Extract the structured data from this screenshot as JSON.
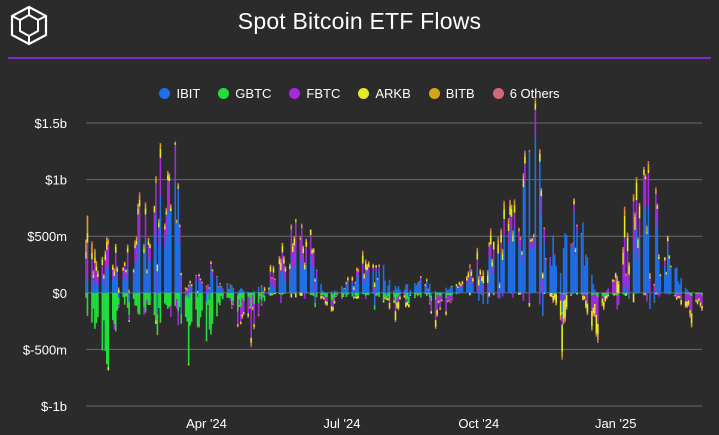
{
  "header": {
    "title": "Spot Bitcoin ETF Flows",
    "logo_icon": "cube-logo-icon"
  },
  "colors": {
    "background": "#2b2b2b",
    "accent_rule": "#7b2fbf",
    "grid": "#6a6a6a"
  },
  "chart_data": {
    "type": "bar",
    "stacked": true,
    "title": "Spot Bitcoin ETF Flows",
    "xlabel": "",
    "ylabel": "",
    "ylim": [
      -1000000000,
      1500000000
    ],
    "yticks": [
      {
        "value": 1500000000,
        "label": "$1.5b"
      },
      {
        "value": 1000000000,
        "label": "$1b"
      },
      {
        "value": 500000000,
        "label": "$500m"
      },
      {
        "value": 0,
        "label": "$0"
      },
      {
        "value": -500000000,
        "label": "$-500m"
      },
      {
        "value": -1000000000,
        "label": "$-1b"
      }
    ],
    "xticks": [
      {
        "date": "2024-04-01",
        "label": "Apr '24"
      },
      {
        "date": "2024-07-01",
        "label": "Jul '24"
      },
      {
        "date": "2024-10-01",
        "label": "Oct '24"
      },
      {
        "date": "2025-01-01",
        "label": "Jan '25"
      }
    ],
    "xlim": [
      "2024-01-11",
      "2025-02-28"
    ],
    "grid": true,
    "legend_position": "top",
    "series": [
      {
        "name": "IBIT",
        "color": "#1f6fe8"
      },
      {
        "name": "GBTC",
        "color": "#22e03c"
      },
      {
        "name": "FBTC",
        "color": "#a32bdc"
      },
      {
        "name": "ARKB",
        "color": "#e8e82a"
      },
      {
        "name": "BITB",
        "color": "#d9a320"
      },
      {
        "name": "6 Others",
        "color": "#d06a78"
      }
    ],
    "anchors": [
      {
        "date": "2024-01-11",
        "IBIT": 110,
        "GBTC": -95,
        "FBTC": 230,
        "ARKB": 65,
        "BITB": 125,
        "6 Others": 30
      },
      {
        "date": "2024-01-22",
        "IBIT": 160,
        "GBTC": -640,
        "FBTC": 150,
        "ARKB": 60,
        "BITB": 30,
        "6 Others": 10
      },
      {
        "date": "2024-02-05",
        "IBIT": 230,
        "GBTC": -170,
        "FBTC": 150,
        "ARKB": 50,
        "BITB": 20,
        "6 Others": 15
      },
      {
        "date": "2024-02-15",
        "IBIT": 330,
        "GBTC": -130,
        "FBTC": 180,
        "ARKB": 40,
        "BITB": 30,
        "6 Others": 15
      },
      {
        "date": "2024-02-28",
        "IBIT": 612,
        "GBTC": -216,
        "FBTC": 245,
        "ARKB": 70,
        "BITB": 40,
        "6 Others": 15
      },
      {
        "date": "2024-03-12",
        "IBIT": 849,
        "GBTC": -79,
        "FBTC": 281,
        "ARKB": 10,
        "BITB": 20,
        "6 Others": 10
      },
      {
        "date": "2024-03-19",
        "IBIT": 75,
        "GBTC": -443,
        "FBTC": 39,
        "ARKB": 20,
        "BITB": 10,
        "6 Others": 5
      },
      {
        "date": "2024-04-01",
        "IBIT": 165,
        "GBTC": -302,
        "FBTC": 44,
        "ARKB": 10,
        "BITB": 5,
        "6 Others": 5
      },
      {
        "date": "2024-04-15",
        "IBIT": 73,
        "GBTC": -110,
        "FBTC": 5,
        "ARKB": 5,
        "BITB": 5,
        "6 Others": 2
      },
      {
        "date": "2024-05-01",
        "IBIT": 0,
        "GBTC": -93,
        "FBTC": -191,
        "ARKB": -31,
        "BITB": -6,
        "6 Others": -20
      },
      {
        "date": "2024-05-15",
        "IBIT": 93,
        "GBTC": -20,
        "FBTC": 131,
        "ARKB": 50,
        "BITB": 20,
        "6 Others": 10
      },
      {
        "date": "2024-06-05",
        "IBIT": 350,
        "GBTC": 0,
        "FBTC": 220,
        "ARKB": 70,
        "BITB": 30,
        "6 Others": 10
      },
      {
        "date": "2024-06-20",
        "IBIT": -10,
        "GBTC": -50,
        "FBTC": -60,
        "ARKB": -40,
        "BITB": -10,
        "6 Others": -10
      },
      {
        "date": "2024-07-15",
        "IBIT": 120,
        "GBTC": -20,
        "FBTC": 60,
        "ARKB": 50,
        "BITB": 20,
        "6 Others": 10
      },
      {
        "date": "2024-07-22",
        "IBIT": 300,
        "GBTC": -30,
        "FBTC": 60,
        "ARKB": 40,
        "BITB": 10,
        "6 Others": 10
      },
      {
        "date": "2024-08-05",
        "IBIT": 40,
        "GBTC": -70,
        "FBTC": -50,
        "ARKB": -60,
        "BITB": -10,
        "6 Others": -10
      },
      {
        "date": "2024-08-26",
        "IBIT": 100,
        "GBTC": -20,
        "FBTC": 20,
        "ARKB": 20,
        "BITB": 10,
        "6 Others": 5
      },
      {
        "date": "2024-09-03",
        "IBIT": 0,
        "GBTC": -50,
        "FBTC": -150,
        "ARKB": -50,
        "BITB": -10,
        "6 Others": -10
      },
      {
        "date": "2024-09-20",
        "IBIT": 90,
        "GBTC": 0,
        "FBTC": 40,
        "ARKB": 40,
        "BITB": 10,
        "6 Others": 5
      },
      {
        "date": "2024-10-14",
        "IBIT": 300,
        "GBTC": 0,
        "FBTC": 100,
        "ARKB": 70,
        "BITB": 40,
        "6 Others": 20
      },
      {
        "date": "2024-10-29",
        "IBIT": 640,
        "GBTC": 0,
        "FBTC": 130,
        "ARKB": 60,
        "BITB": 30,
        "6 Others": 15
      },
      {
        "date": "2024-11-07",
        "IBIT": 1100,
        "GBTC": 0,
        "FBTC": 190,
        "ARKB": 40,
        "BITB": 20,
        "6 Others": 15
      },
      {
        "date": "2024-11-13",
        "IBIT": 780,
        "GBTC": 0,
        "FBTC": 200,
        "ARKB": 60,
        "BITB": 20,
        "6 Others": 10
      },
      {
        "date": "2024-11-25",
        "IBIT": 260,
        "GBTC": -20,
        "FBTC": -80,
        "ARKB": -200,
        "BITB": -40,
        "6 Others": -20
      },
      {
        "date": "2024-12-05",
        "IBIT": 750,
        "GBTC": 0,
        "FBTC": 80,
        "ARKB": 60,
        "BITB": 20,
        "6 Others": 10
      },
      {
        "date": "2024-12-19",
        "IBIT": 0,
        "GBTC": -30,
        "FBTC": -200,
        "ARKB": -190,
        "BITB": -40,
        "6 Others": -20
      },
      {
        "date": "2025-01-06",
        "IBIT": 0,
        "GBTC": -20,
        "FBTC": 370,
        "ARKB": 160,
        "BITB": 50,
        "6 Others": 20
      },
      {
        "date": "2025-01-17",
        "IBIT": 527,
        "GBTC": 0,
        "FBTC": 150,
        "ARKB": 110,
        "BITB": 20,
        "6 Others": 10
      },
      {
        "date": "2025-01-21",
        "IBIT": 661,
        "GBTC": 0,
        "FBTC": 250,
        "ARKB": 20,
        "BITB": 50,
        "6 Others": 20
      },
      {
        "date": "2025-02-04",
        "IBIT": 300,
        "GBTC": 0,
        "FBTC": 50,
        "ARKB": 30,
        "BITB": 10,
        "6 Others": 5
      },
      {
        "date": "2025-02-20",
        "IBIT": 0,
        "GBTC": -20,
        "FBTC": -110,
        "ARKB": -70,
        "BITB": -20,
        "6 Others": -10
      },
      {
        "date": "2025-02-28",
        "IBIT": 0,
        "GBTC": -20,
        "FBTC": -70,
        "ARKB": -20,
        "BITB": -10,
        "6 Others": -5
      }
    ],
    "anchor_units": "millions USD per trading day, approximate values read from the chart"
  }
}
